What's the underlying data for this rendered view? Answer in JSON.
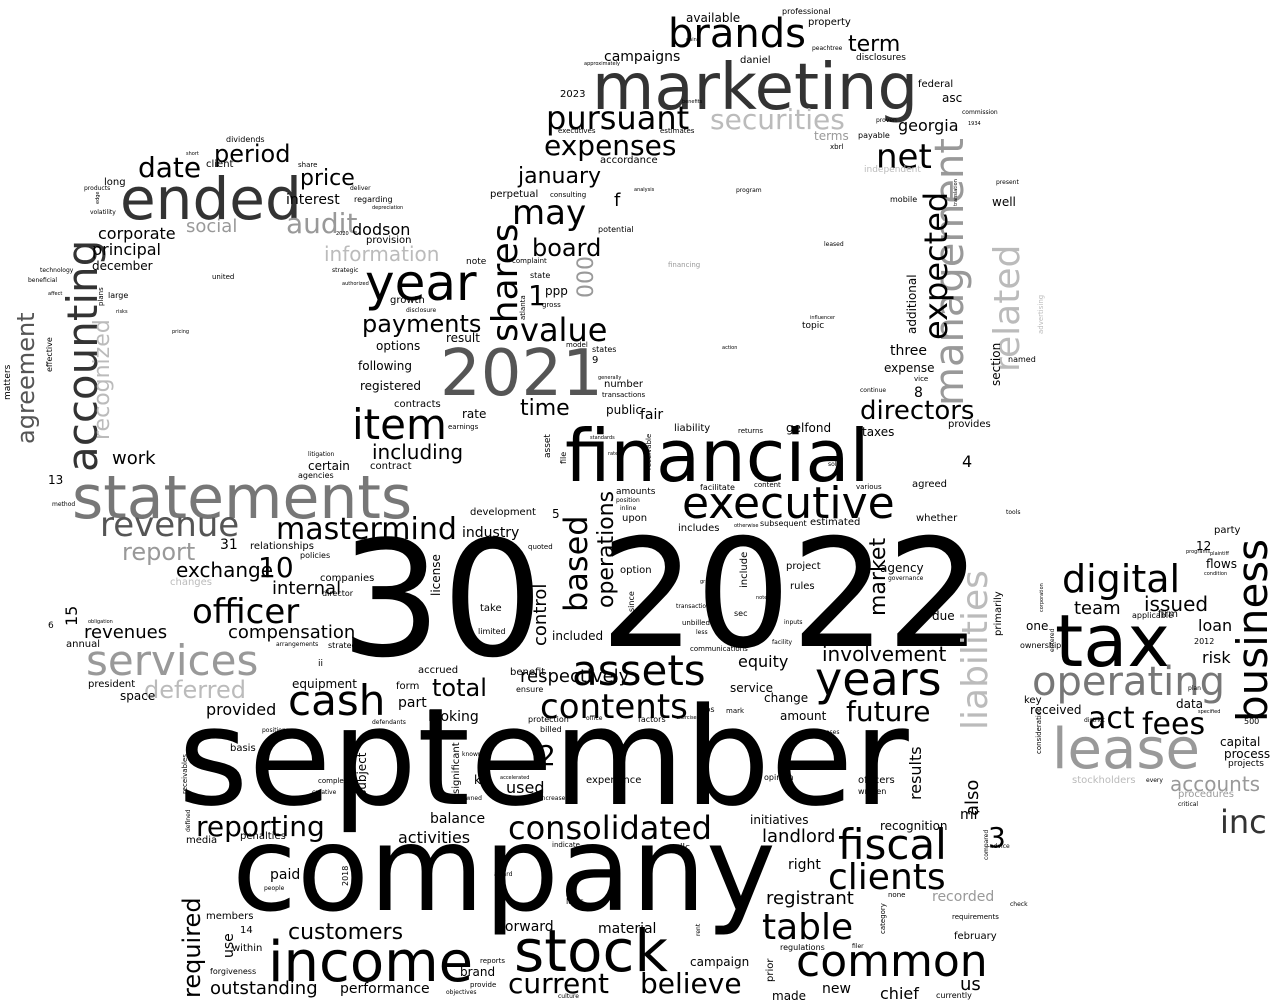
{
  "words": {
    "september": "september",
    "company": "company",
    "n30": "30",
    "n2022": "2022",
    "financial": "financial",
    "tax": "tax",
    "marketing": "marketing",
    "statements": "statements",
    "n2021": "2021",
    "ended": "ended",
    "year": "year",
    "income": "income",
    "stock": "stock",
    "years": "years",
    "executive": "executive",
    "lease": "lease",
    "accounting": "accounting",
    "business": "business",
    "services": "services",
    "assets": "assets",
    "item": "item",
    "brands": "brands",
    "cash": "cash",
    "digital": "digital",
    "operating": "operating",
    "management": "management",
    "liabilities": "liabilities",
    "common": "common",
    "fiscal": "fiscal",
    "clients": "clients",
    "consolidated": "consolidated",
    "officer": "officer",
    "revenue": "revenue",
    "shares": "shares",
    "mastermind": "mastermind",
    "table": "table",
    "related": "related",
    "expected": "expected",
    "contents": "contents",
    "based": "based",
    "pursuant": "pursuant",
    "expenses": "expenses",
    "securities": "securities",
    "net": "net",
    "value": "value",
    "may": "may",
    "directors": "directors",
    "inc": "inc",
    "act": "act",
    "fees": "fees",
    "reporting": "reporting",
    "current": "current",
    "believe": "believe",
    "payments": "payments",
    "date": "date",
    "period": "period",
    "audit": "audit",
    "price": "price",
    "board": "board",
    "january": "january",
    "information": "information",
    "report": "report",
    "deferred": "deferred",
    "compensation": "compensation",
    "total": "total",
    "involvement": "involvement",
    "future": "future",
    "customers": "customers",
    "required": "required",
    "outstanding": "outstanding",
    "performance": "performance",
    "agreement": "agreement",
    "recognized": "recognized",
    "time": "time",
    "including": "including",
    "respectively": "respectively",
    "control": "control",
    "operations": "operations",
    "market": "market",
    "term": "term",
    "georgia": "georgia",
    "accounts": "accounts",
    "issued": "issued",
    "team": "team",
    "loan": "loan",
    "risk": "risk",
    "exchange": "exchange",
    "revenues": "revenues",
    "internal": "internal",
    "work": "work",
    "social": "social",
    "corporate": "corporate",
    "principal": "principal",
    "december": "december",
    "interest": "interest",
    "dodson": "dodson",
    "provision": "provision",
    "n000": "000",
    "n1": "1",
    "ppp": "ppp",
    "n10": "10",
    "n2": "2",
    "n3": "3",
    "n4": "4",
    "n5": "5",
    "n8": "8",
    "n15": "15",
    "n31": "31",
    "n13": "13",
    "n12": "12",
    "n14": "14",
    "equity": "equity",
    "service": "service",
    "change": "change",
    "amount": "amount",
    "provided": "provided",
    "part": "part",
    "form": "form",
    "looking": "looking",
    "landlord": "landlord",
    "initiatives": "initiatives",
    "right": "right",
    "registrant": "registrant",
    "recorded": "recorded",
    "results": "results",
    "also": "also",
    "mr": "mr",
    "recognition": "recognition",
    "officers": "officers",
    "written": "written",
    "chief": "chief",
    "us": "us",
    "new": "new",
    "made": "made",
    "campaign": "campaign",
    "brand": "brand",
    "forward": "forward",
    "material": "material",
    "laws": "laws",
    "activities": "activities",
    "balance": "balance",
    "used": "used",
    "experience": "experience",
    "subject": "subject",
    "significant": "significant",
    "media": "media",
    "basis": "basis",
    "penalties": "penalties",
    "paid": "paid",
    "members": "members",
    "within": "within",
    "forgiveness": "forgiveness",
    "use": "use",
    "equipment": "equipment",
    "space": "space",
    "president": "president",
    "annual": "annual",
    "changes": "changes",
    "relationships": "relationships",
    "policies": "policies",
    "companies": "companies",
    "director": "director",
    "license": "license",
    "industry": "industry",
    "development": "development",
    "certain": "certain",
    "contract": "contract",
    "agencies": "agencies",
    "following": "following",
    "registered": "registered",
    "contracts": "contracts",
    "options": "options",
    "result": "result",
    "growth": "growth",
    "rate": "rate",
    "public": "public",
    "fair": "fair",
    "liability": "liability",
    "gelfond": "gelfond",
    "taxes": "taxes",
    "three": "three",
    "expense": "expense",
    "additional": "additional",
    "section": "section",
    "well": "well",
    "agreed": "agreed",
    "whether": "whether",
    "agency": "agency",
    "due": "due",
    "primarily": "primarily",
    "one": "one",
    "ownership": "ownership",
    "key": "key",
    "received": "received",
    "data": "data",
    "capital": "capital",
    "process": "process",
    "projects": "projects",
    "party": "party",
    "flows": "flows",
    "firm": "firm",
    "applicable": "applicable",
    "stockholders": "stockholders",
    "procedures": "procedures",
    "named": "named",
    "provides": "provides",
    "estimated": "estimated",
    "subsequent": "subsequent",
    "includes": "includes",
    "facilitate": "facilitate",
    "option": "option",
    "upon": "upon",
    "amounts": "amounts",
    "included": "included",
    "benefit": "benefit",
    "ensure": "ensure",
    "protection": "protection",
    "billed": "billed",
    "accrued": "accrued",
    "take": "take",
    "limited": "limited",
    "project": "project",
    "rules": "rules",
    "include": "include",
    "campaigns": "campaigns",
    "available": "available",
    "property": "property",
    "daniel": "daniel",
    "disclosures": "disclosures",
    "federal": "federal",
    "asc": "asc",
    "terms": "terms",
    "payable": "payable",
    "independent": "independent",
    "mobile": "mobile",
    "accordance": "accordance",
    "perpetual": "perpetual",
    "consulting": "consulting",
    "note": "note",
    "state": "state",
    "potential": "potential",
    "dividends": "dividends",
    "client": "client",
    "long": "long",
    "large": "large",
    "effective": "effective",
    "matters": "matters",
    "executives": "executives",
    "estimates": "estimates",
    "topic": "topic",
    "n2023": "2023",
    "f": "f",
    "n9": "9",
    "n6": "6",
    "ii": "ii",
    "n2012": "2012",
    "n2018": "2018",
    "n500": "500",
    "k": "k",
    "regarding": "regarding",
    "number": "number",
    "transactions": "transactions",
    "states": "states",
    "quoted": "quoted",
    "communications": "communications",
    "returns": "returns",
    "content": "content",
    "various": "various",
    "reports": "reports",
    "provide": "provide",
    "culture": "culture",
    "objectives": "objectives",
    "regulations": "regulations",
    "currently": "currently",
    "requirements": "requirements",
    "february": "february",
    "category": "category",
    "none": "none",
    "compared": "compared",
    "advice": "advice",
    "check": "check",
    "critical": "critical",
    "opinion": "opinion",
    "strategy": "strategy",
    "arrangements": "arrangements",
    "completed": "completed",
    "creative": "creative",
    "people": "people",
    "defendants": "defendants",
    "positions": "positions",
    "financing": "financing",
    "commission": "commission",
    "professional": "professional",
    "peachtree": "peachtree",
    "llc": "llc",
    "indicate": "indicate",
    "unbilled": "unbilled",
    "transaction": "transaction",
    "inputs": "inputs",
    "facility": "facility",
    "notes": "notes",
    "less": "less",
    "since": "since",
    "sec": "sec",
    "grant": "grant",
    "mark": "mark",
    "rios": "rios",
    "exercise": "exercise",
    "factors": "factors",
    "office": "office",
    "purposes": "purposes",
    "united": "united",
    "obligation": "obligation",
    "method": "method",
    "technology": "technology",
    "products": "products",
    "edge": "edge",
    "volatility": "volatility",
    "tools": "tools",
    "present": "present",
    "known": "known",
    "owned": "owned",
    "increase": "increase",
    "accelerated": "accelerated",
    "award": "award",
    "rent": "rent",
    "prior": "prior",
    "filer": "filer",
    "standards": "standards",
    "rates": "rates",
    "file": "file",
    "asset": "asset",
    "receivable": "receivable",
    "receivables": "receivables",
    "defined": "defined",
    "earnings": "earnings",
    "litigation": "litigation",
    "strategic": "strategic",
    "disclosure": "disclosure",
    "authorized": "authorized",
    "atlanta": "atlanta",
    "gross": "gross",
    "model": "model",
    "complaint": "complaint",
    "program": "program",
    "leased": "leased",
    "influencer": "influencer",
    "action": "action",
    "continue": "continue",
    "vice": "vice",
    "sole": "sole",
    "governance": "governance",
    "otherwise": "otherwise",
    "inline": "inline",
    "position": "position",
    "analysis": "analysis",
    "entered": "entered",
    "corporation": "corporation",
    "consideration": "consideration",
    "district": "district",
    "plaintiff": "plaintiff",
    "condition": "condition",
    "programs": "programs",
    "majority": "majority",
    "wages": "wages",
    "plan": "plan",
    "specified": "specified",
    "every": "every",
    "n1934": "1934",
    "n2017": "2017",
    "n2020": "2020",
    "generally": "generally",
    "period2": "approximately",
    "xbrl": "xbrl",
    "proven": "proven",
    "beneficial": "beneficial",
    "affect": "affect",
    "risks": "risks",
    "pricing": "pricing",
    "plans": "plans",
    "share": "share",
    "short": "short",
    "deliver": "deliver",
    "depreciation": "depreciation",
    "benefits": "benefits",
    "gain": "gain",
    "advertising": "advertising",
    "translation": "translation"
  }
}
